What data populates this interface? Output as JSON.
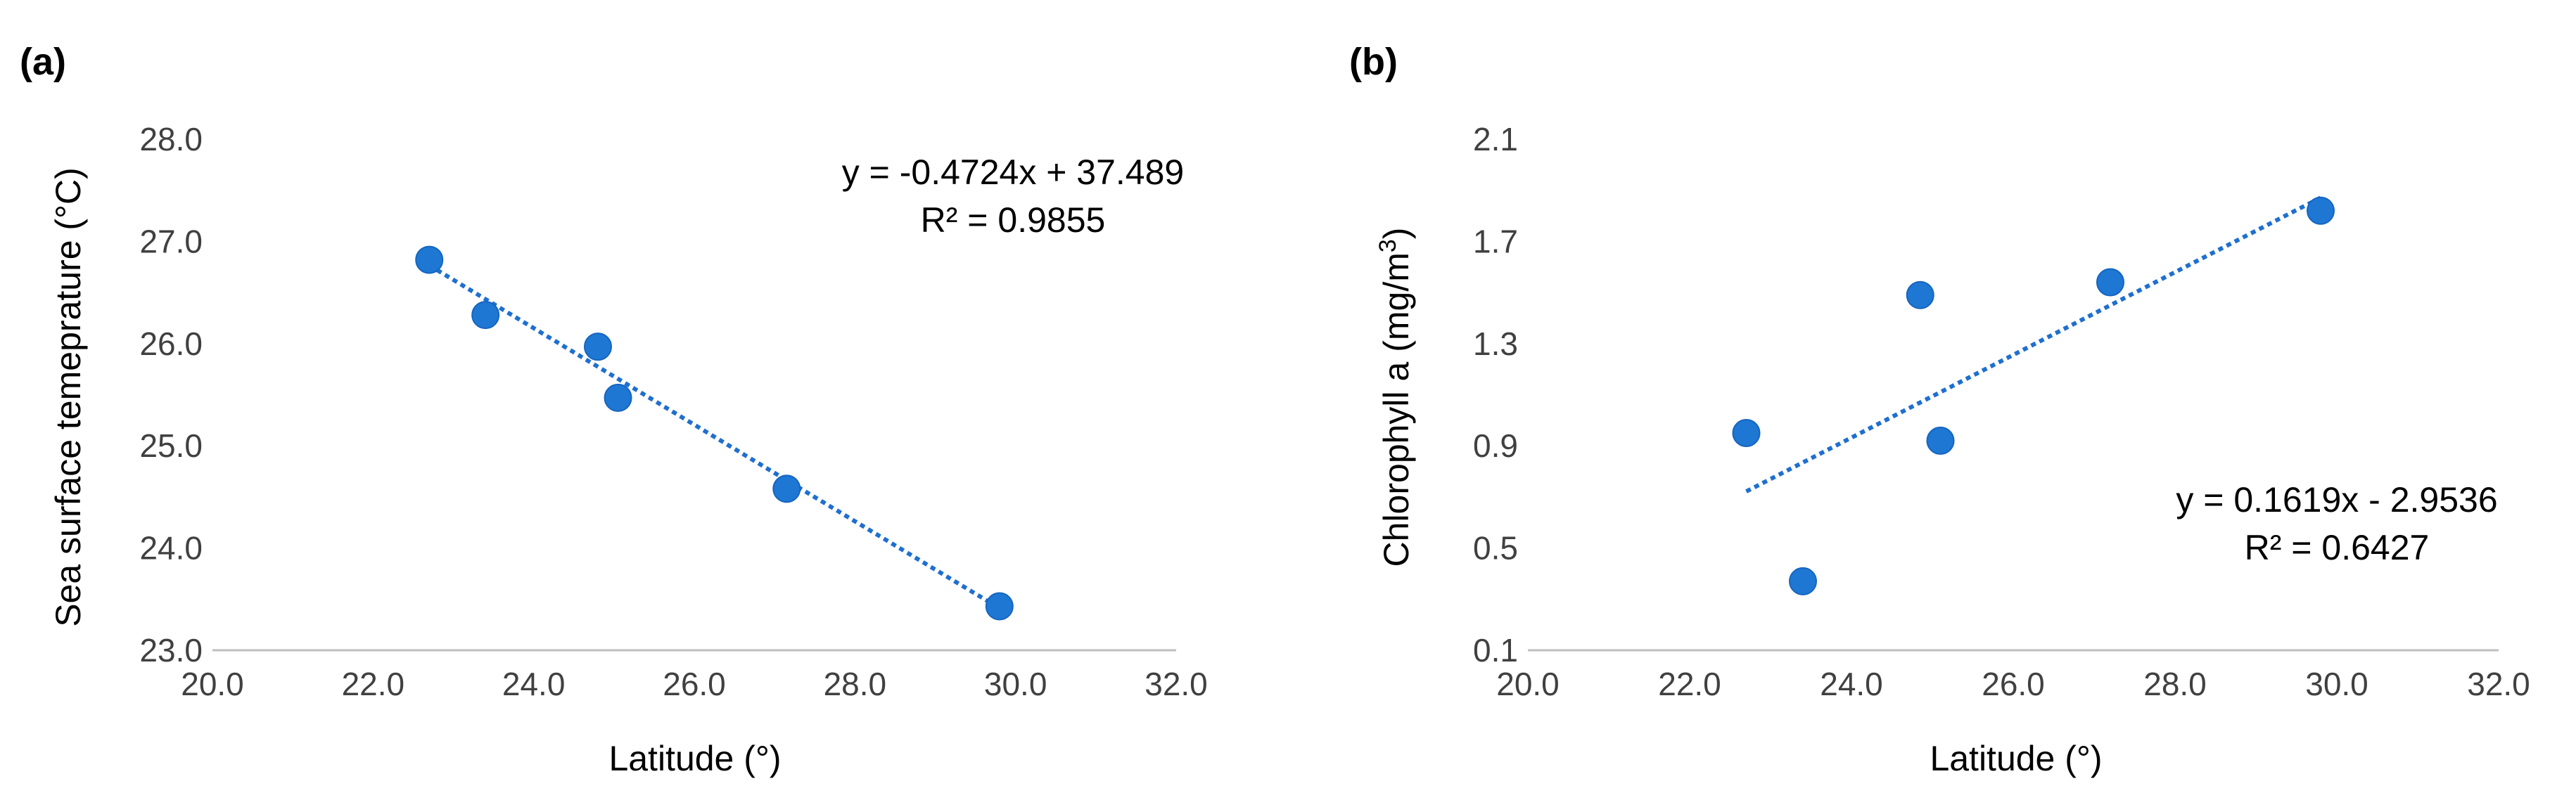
{
  "chart_data": [
    {
      "type": "scatter",
      "panel_label": "(a)",
      "xlabel": "Latitude (°)",
      "ylabel": "Sea surface temeprature (°C)",
      "xlim": [
        20.0,
        32.0
      ],
      "ylim": [
        23.0,
        28.0
      ],
      "xticks": [
        "20.0",
        "22.0",
        "24.0",
        "26.0",
        "28.0",
        "30.0",
        "32.0"
      ],
      "yticks": [
        "23.0",
        "24.0",
        "25.0",
        "26.0",
        "27.0",
        "28.0"
      ],
      "points": [
        {
          "x": 22.7,
          "y": 26.82
        },
        {
          "x": 23.4,
          "y": 26.28
        },
        {
          "x": 24.8,
          "y": 25.97
        },
        {
          "x": 25.05,
          "y": 25.47
        },
        {
          "x": 27.15,
          "y": 24.58
        },
        {
          "x": 29.8,
          "y": 23.43
        }
      ],
      "trendline": {
        "slope": -0.4724,
        "intercept": 37.489,
        "x_range": [
          22.7,
          29.8
        ]
      },
      "equation": "y = -0.4724x + 37.489",
      "r_squared": "R² = 0.9855",
      "color": "#1f77d4"
    },
    {
      "type": "scatter",
      "panel_label": "(b)",
      "xlabel": "Latitude (°)",
      "ylabel_main": "Chlorophyll a (mg/m",
      "ylabel_sup": "3",
      "ylabel_end": ")",
      "xlim": [
        20.0,
        32.0
      ],
      "ylim": [
        0.1,
        2.1
      ],
      "xticks": [
        "20.0",
        "22.0",
        "24.0",
        "26.0",
        "28.0",
        "30.0",
        "32.0"
      ],
      "yticks": [
        "0.1",
        "0.5",
        "0.9",
        "1.3",
        "1.7",
        "2.1"
      ],
      "points": [
        {
          "x": 22.7,
          "y": 0.95
        },
        {
          "x": 23.4,
          "y": 0.37
        },
        {
          "x": 24.85,
          "y": 1.49
        },
        {
          "x": 25.1,
          "y": 0.92
        },
        {
          "x": 27.2,
          "y": 1.54
        },
        {
          "x": 29.8,
          "y": 1.82
        }
      ],
      "trendline": {
        "slope": 0.1619,
        "intercept": -2.9536,
        "x_range": [
          22.7,
          29.8
        ]
      },
      "equation": "y = 0.1619x - 2.9536",
      "r_squared": "R² = 0.6427",
      "color": "#1f77d4"
    }
  ]
}
